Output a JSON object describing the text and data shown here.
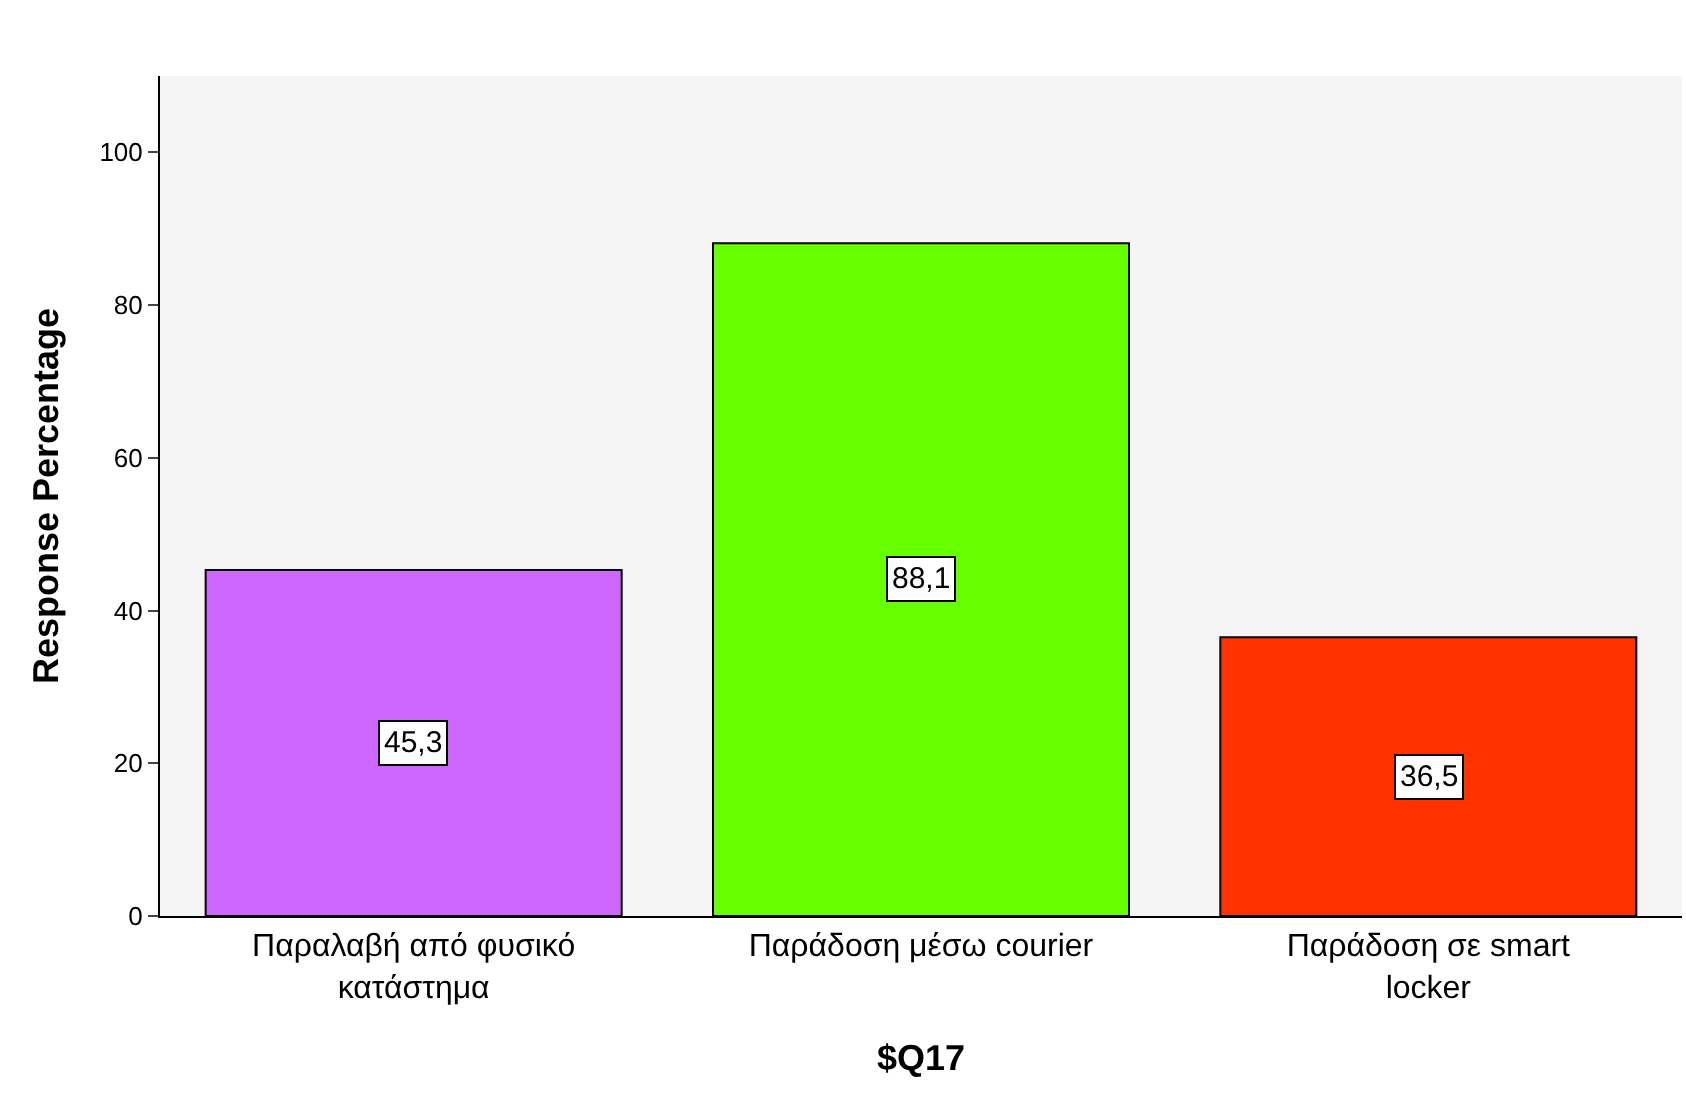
{
  "chart_data": {
    "type": "bar",
    "xlabel": "$Q17",
    "ylabel": "Response Percentage",
    "categories": [
      "Παραλαβή από φυσικό κατάστημα",
      "Παράδοση μέσω courier",
      "Παράδοση σε smart locker"
    ],
    "values": [
      45.3,
      88.1,
      36.5
    ],
    "colors": [
      "#cc66ff",
      "#66ff00",
      "#ff3300"
    ],
    "value_labels": [
      "45,3",
      "88,1",
      "36,5"
    ],
    "ylim": [
      0,
      110
    ],
    "yticks": [
      0,
      20,
      40,
      60,
      80,
      100
    ]
  }
}
